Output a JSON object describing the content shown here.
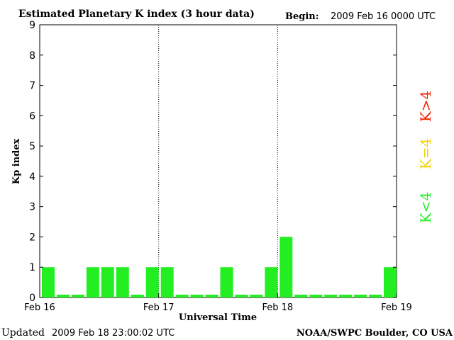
{
  "header": {
    "title": "Estimated Planetary K index (3 hour data)",
    "begin_label": "Begin:",
    "begin_value": "2009 Feb 16 0000 UTC"
  },
  "footer": {
    "updated_label": "Updated",
    "updated_value": "2009 Feb 18 23:00:02 UTC",
    "source": "NOAA/SWPC Boulder, CO USA"
  },
  "legend": {
    "low": {
      "label": "K<4",
      "color": "#22ee22"
    },
    "mid": {
      "label": "K=4",
      "color": "#f2d000"
    },
    "high": {
      "label": "K>4",
      "color": "#ee2200"
    }
  },
  "chart_data": {
    "type": "bar",
    "title": "Estimated Planetary K index (3 hour data)",
    "xlabel": "Universal Time",
    "ylabel": "Kp index",
    "ylim": [
      0,
      9
    ],
    "yticks": [
      0,
      1,
      2,
      3,
      4,
      5,
      6,
      7,
      8,
      9
    ],
    "xticks": [
      "Feb 16",
      "Feb 17",
      "Feb 18",
      "Feb 19"
    ],
    "day_dividers": [
      "Feb 17",
      "Feb 18"
    ],
    "bar_interval_hours": 3,
    "series": [
      {
        "values": [
          1,
          0,
          0,
          1,
          1,
          1,
          0,
          1,
          1,
          0,
          0,
          0,
          1,
          0,
          0,
          1,
          2,
          0,
          0,
          0,
          0,
          0,
          0,
          1
        ]
      }
    ],
    "bar_color": "#22ee22"
  }
}
